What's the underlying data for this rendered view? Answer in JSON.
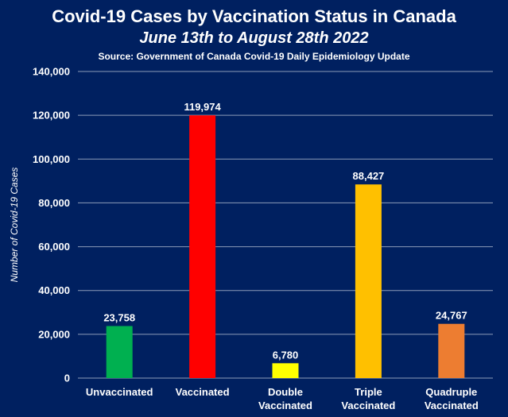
{
  "chart_data": {
    "type": "bar",
    "title": "Covid-19 Cases by Vaccination Status in Canada",
    "subtitle": "June 13th to August 28th 2022",
    "source": "Source: Government of Canada  Covid-19 Daily Epidemiology Update",
    "xlabel": "",
    "ylabel": "Number of Covid-19 Cases",
    "ylim": [
      0,
      140000
    ],
    "yticks": [
      0,
      20000,
      40000,
      60000,
      80000,
      100000,
      120000,
      140000
    ],
    "ytick_labels": [
      "0",
      "20,000",
      "40,000",
      "60,000",
      "80,000",
      "100,000",
      "120,000",
      "140,000"
    ],
    "grid": true,
    "legend": "none",
    "categories": [
      [
        "Unvaccinated"
      ],
      [
        "Vaccinated"
      ],
      [
        "Double",
        "Vaccinated"
      ],
      [
        "Triple",
        "Vaccinated"
      ],
      [
        "Quadruple",
        "Vaccinated"
      ]
    ],
    "values": [
      23758,
      119974,
      6780,
      88427,
      24767
    ],
    "value_labels": [
      "23,758",
      "119,974",
      "6,780",
      "88,427",
      "24,767"
    ],
    "colors": [
      "#00B050",
      "#FF0000",
      "#FFFF00",
      "#FFC000",
      "#ED7D31"
    ]
  },
  "theme": {
    "background": "#002060",
    "text": "#ffffff",
    "grid": "#8c9bb8"
  }
}
